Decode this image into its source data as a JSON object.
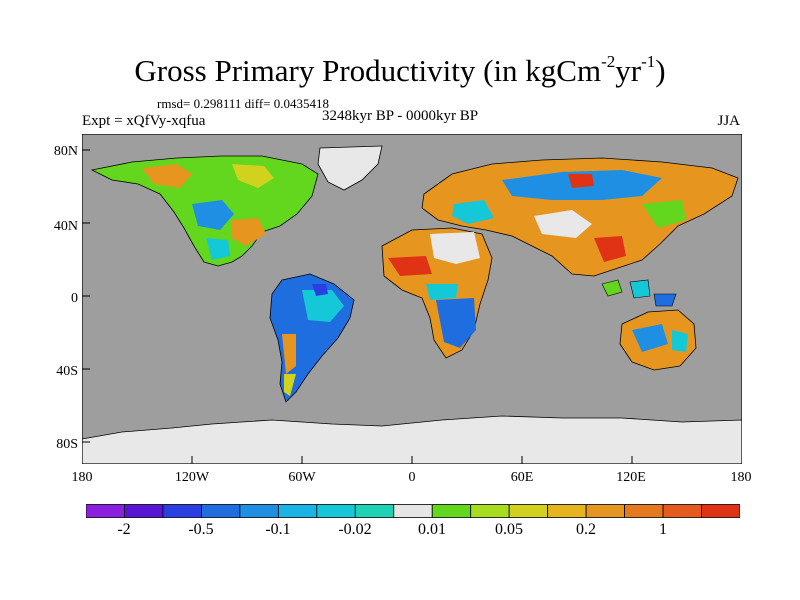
{
  "title_main": "Gross Primary Productivity (in kgCm",
  "title_sup1": "-2",
  "title_mid": "yr",
  "title_sup2": "-1",
  "title_end": ")",
  "stats_text": "rmsd= 0.298111 diff= 0.0435418",
  "expt_text": "Expt = xQfVy-xqfua",
  "period_text": "3248kyr BP - 0000kyr BP",
  "season_text": "JJA",
  "y_ticks": [
    "80N",
    "40N",
    "0",
    "40S",
    "80S"
  ],
  "x_ticks": [
    "180",
    "120W",
    "60W",
    "0",
    "60E",
    "120E",
    "180"
  ],
  "colorbar": {
    "labels": [
      "-2",
      "-0.5",
      "-0.1",
      "-0.02",
      "0.01",
      "0.05",
      "0.2",
      "1"
    ],
    "colors": [
      "#8a1fe0",
      "#5a14d6",
      "#2a3fe0",
      "#1e6ee0",
      "#1f8fe4",
      "#1ab3e6",
      "#14c8d8",
      "#1ed2b4",
      "#e6e6e6",
      "#63d61e",
      "#a8dc1e",
      "#d2d21e",
      "#e6b41e",
      "#e6961e",
      "#e6781e",
      "#e65a1e",
      "#e03214"
    ]
  },
  "colors": {
    "ocean": "#9e9e9e",
    "ice": "#e8e8e8",
    "green": "#63d61e",
    "yellow": "#d2d21e",
    "orange": "#e6961e",
    "red": "#e03214",
    "cyan": "#14c8d8",
    "blue": "#1e6ee0",
    "lightblue": "#1f8fe4",
    "darkblue": "#2a3fe0"
  }
}
